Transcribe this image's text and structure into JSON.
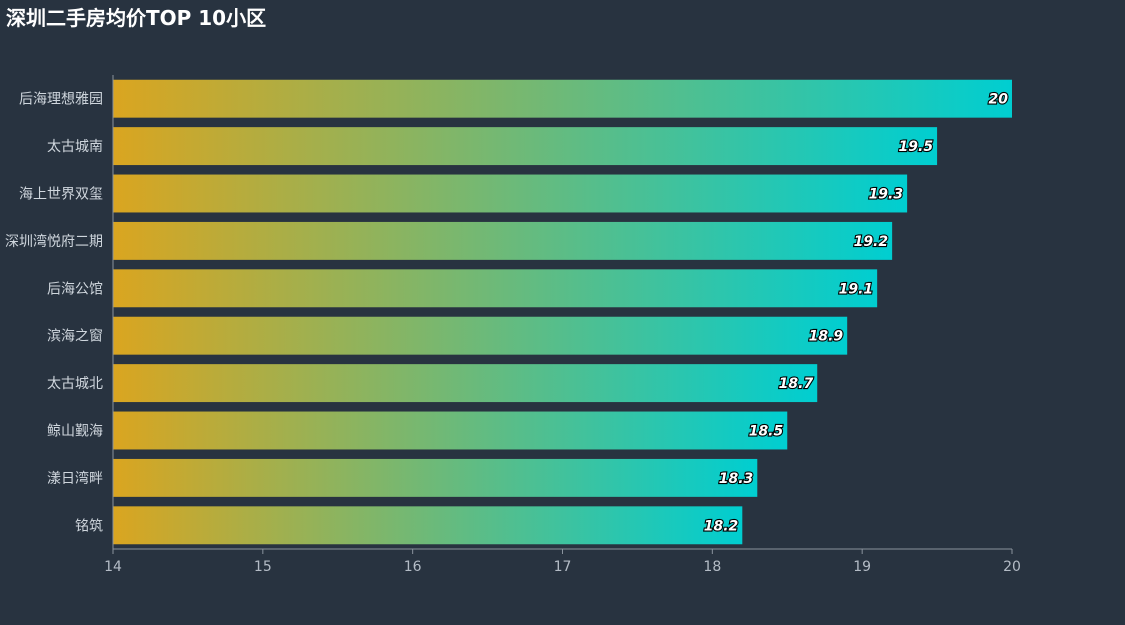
{
  "colors": {
    "background": "#283340",
    "bar_start": "#daa520",
    "bar_end": "#00ced1",
    "axis": "#8a939d"
  },
  "chart_data": {
    "type": "bar",
    "orientation": "horizontal",
    "title": "深圳二手房均价TOP 10小区",
    "categories": [
      "后海理想雅园",
      "太古城南",
      "海上世界双玺",
      "深圳湾悦府二期",
      "后海公馆",
      "滨海之窗",
      "太古城北",
      "鲸山觐海",
      "漾日湾畔",
      "铭筑"
    ],
    "values": [
      20,
      19.5,
      19.3,
      19.2,
      19.1,
      18.9,
      18.7,
      18.5,
      18.3,
      18.2
    ],
    "value_labels": [
      "20",
      "19.5",
      "19.3",
      "19.2",
      "19.1",
      "18.9",
      "18.7",
      "18.5",
      "18.3",
      "18.2"
    ],
    "xlim": [
      14,
      20
    ],
    "xticks": [
      "14",
      "15",
      "16",
      "17",
      "18",
      "19",
      "20"
    ],
    "xlabel": "",
    "ylabel": "",
    "grid": false,
    "legend": "none"
  }
}
